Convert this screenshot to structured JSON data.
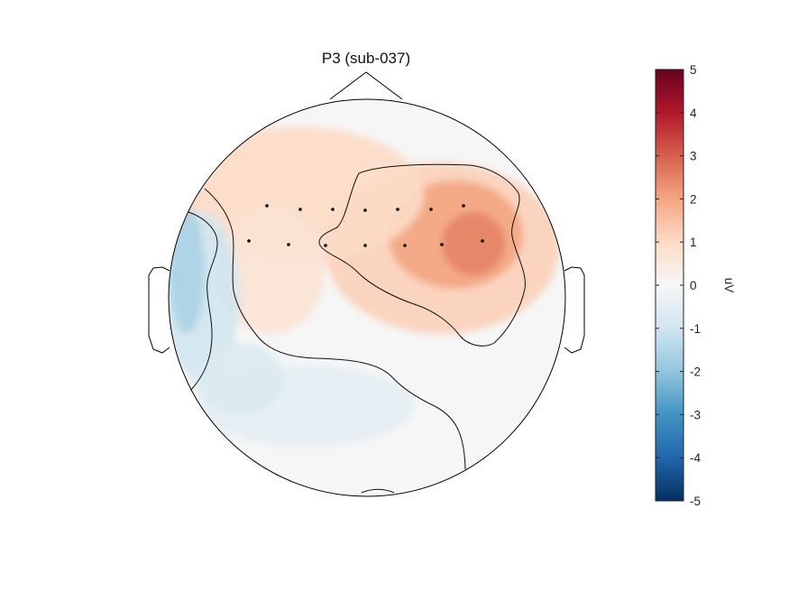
{
  "chart_data": {
    "type": "heatmap",
    "subtype": "eeg-topoplot",
    "title": "P3 (sub-037)",
    "colorbar": {
      "label": "uV",
      "range": [
        -5,
        5
      ],
      "ticks": [
        "5",
        "4",
        "3",
        "2",
        "1",
        "0",
        "-1",
        "-2",
        "-3",
        "-4",
        "-5"
      ],
      "colormap": "RdBu_r",
      "colors": [
        "#053061",
        "#2166ac",
        "#4393c3",
        "#92c5de",
        "#d1e5f0",
        "#f7f7f7",
        "#fddbc7",
        "#f4a582",
        "#d6604d",
        "#b2182b",
        "#67001f"
      ]
    },
    "contours": [
      -1,
      1
    ],
    "electrodes": 14,
    "value_peak_uv": 2.5,
    "value_min_uv": -1.6
  }
}
